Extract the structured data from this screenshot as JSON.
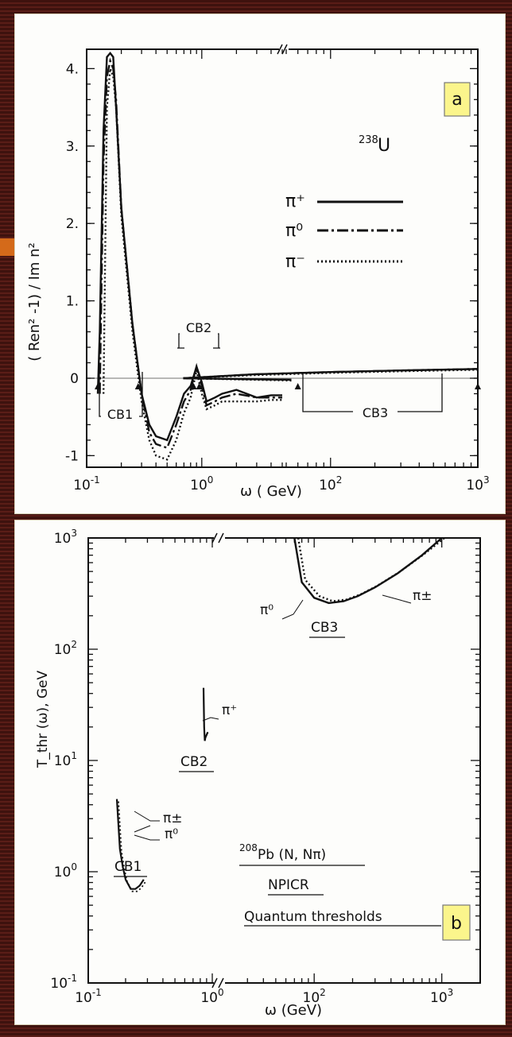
{
  "chart_data": [
    {
      "type": "line",
      "panel_label": "a",
      "ylabel": "( Ren² -1) / Im n²",
      "xlabel": "ω ( GeV)",
      "x_scale": "log (broken axis between ~5×10^0 and ~5×10^1)",
      "xlim": [
        0.1,
        1000
      ],
      "ylim": [
        -1.15,
        4.25
      ],
      "x_ticks": [
        "10^-1",
        "10^0",
        "10^2",
        "10^3"
      ],
      "y_ticks": [
        "4.",
        "3.",
        "2.",
        "1.",
        "0",
        "-1"
      ],
      "target": "238U",
      "target_mass": "238",
      "target_symbol": "U",
      "legend": [
        "π⁺",
        "π⁰",
        "π⁻"
      ],
      "legend_placement": "right",
      "annotations": [
        "CB1",
        "CB2",
        "CB3"
      ],
      "series": [
        {
          "name": "π⁺",
          "style": "solid",
          "x": [
            0.125,
            0.13,
            0.14,
            0.15,
            0.16,
            0.17,
            0.18,
            0.2,
            0.25,
            0.3,
            0.35,
            0.4,
            0.5,
            0.6,
            0.7,
            0.8,
            0.9,
            1.0,
            1.1,
            1.3,
            1.5,
            2,
            3,
            5,
            4,
            6,
            10,
            30,
            100,
            300,
            1000
          ],
          "y": [
            -0.2,
            0.6,
            3.2,
            4.15,
            4.2,
            4.15,
            3.5,
            2.2,
            0.7,
            -0.2,
            -0.6,
            -0.75,
            -0.8,
            -0.5,
            -0.2,
            -0.1,
            0.15,
            -0.05,
            -0.3,
            -0.25,
            -0.2,
            -0.15,
            -0.25,
            -0.22,
            -0.22,
            -0.02,
            0.0,
            0.05,
            0.08,
            0.1,
            0.12
          ]
        },
        {
          "name": "π⁰",
          "style": "dash-dot",
          "x": [
            0.13,
            0.14,
            0.15,
            0.16,
            0.17,
            0.18,
            0.2,
            0.25,
            0.3,
            0.35,
            0.4,
            0.5,
            0.6,
            0.7,
            0.8,
            0.9,
            1.0,
            1.1,
            1.3,
            1.5,
            2,
            3,
            5,
            4,
            6,
            10,
            30,
            100,
            300,
            1000
          ],
          "y": [
            -0.2,
            2.8,
            3.9,
            4.1,
            4.0,
            3.6,
            2.2,
            0.7,
            -0.2,
            -0.7,
            -0.85,
            -0.9,
            -0.6,
            -0.3,
            -0.15,
            0.15,
            -0.1,
            -0.35,
            -0.3,
            -0.25,
            -0.2,
            -0.25,
            -0.25,
            -0.25,
            -0.02,
            0.0,
            0.05,
            0.08,
            0.1,
            0.12
          ]
        },
        {
          "name": "π⁻",
          "style": "dotted",
          "x": [
            0.14,
            0.15,
            0.16,
            0.17,
            0.18,
            0.2,
            0.25,
            0.3,
            0.35,
            0.4,
            0.5,
            0.6,
            0.7,
            0.8,
            0.9,
            1.0,
            1.1,
            1.3,
            1.5,
            2,
            3,
            5,
            4,
            6,
            10,
            30,
            100,
            300,
            1000
          ],
          "y": [
            -0.2,
            3.5,
            4.0,
            3.9,
            3.5,
            2.1,
            0.6,
            -0.3,
            -0.8,
            -1.0,
            -1.05,
            -0.8,
            -0.45,
            -0.25,
            0.1,
            -0.2,
            -0.4,
            -0.35,
            -0.3,
            -0.3,
            -0.3,
            -0.28,
            -0.28,
            -0.03,
            0.0,
            0.04,
            0.07,
            0.09,
            0.11
          ]
        }
      ]
    },
    {
      "type": "line",
      "panel_label": "b",
      "ylabel": "T_thr (ω), GeV",
      "xlabel": "ω (GeV)",
      "x_scale": "log (broken axis between ~10^0 and ~2×10^1)",
      "y_scale": "log",
      "xlim": [
        0.1,
        2000
      ],
      "ylim": [
        0.1,
        1000
      ],
      "x_ticks": [
        "10^-1",
        "10^0",
        "10^2",
        "10^3"
      ],
      "y_ticks": [
        "10^3",
        "10^2",
        "10^1",
        "10^0",
        "10^-1"
      ],
      "legend_text": [
        "²⁰⁸Pb (N,Nπ)",
        "NPICR",
        "Quantum thresholds"
      ],
      "legend_mass": "208",
      "legend_rest": "Pb (N, Nπ)",
      "annotations": [
        "CB1",
        "CB2",
        "CB3",
        "π±",
        "π⁰",
        "π⁺",
        "π⁰",
        "π±"
      ],
      "series": [
        {
          "name": "CB1",
          "x": [
            0.17,
            0.18,
            0.19,
            0.2,
            0.22,
            0.24,
            0.26,
            0.28
          ],
          "y": [
            4.5,
            1.6,
            1.1,
            0.85,
            0.7,
            0.7,
            0.75,
            0.85
          ]
        },
        {
          "name": "CB2",
          "x": [
            0.85,
            0.86,
            0.87,
            0.88,
            0.9,
            0.92
          ],
          "y": [
            45,
            20,
            15,
            16,
            17,
            18
          ]
        },
        {
          "name": "CB3 π⁰",
          "x": [
            70,
            80,
            100,
            130,
            170,
            220,
            300,
            450,
            700,
            1000
          ],
          "y": [
            1000,
            400,
            290,
            260,
            270,
            300,
            360,
            480,
            700,
            1000
          ]
        },
        {
          "name": "CB3 π±",
          "x": [
            75,
            85,
            110,
            140,
            180,
            230,
            310,
            460,
            720,
            1050
          ],
          "y": [
            1000,
            420,
            300,
            270,
            280,
            310,
            370,
            490,
            710,
            1000
          ]
        }
      ]
    }
  ],
  "icons": {
    "legend_line_a": "solid",
    "legend_line_b": "dash-dot",
    "legend_line_c": "dotted"
  },
  "colors": {
    "frame": "#4a1712",
    "panel": "#fdfdfb",
    "badge": "#fbf58c",
    "ink": "#111111",
    "accent": "#d46a1a"
  }
}
